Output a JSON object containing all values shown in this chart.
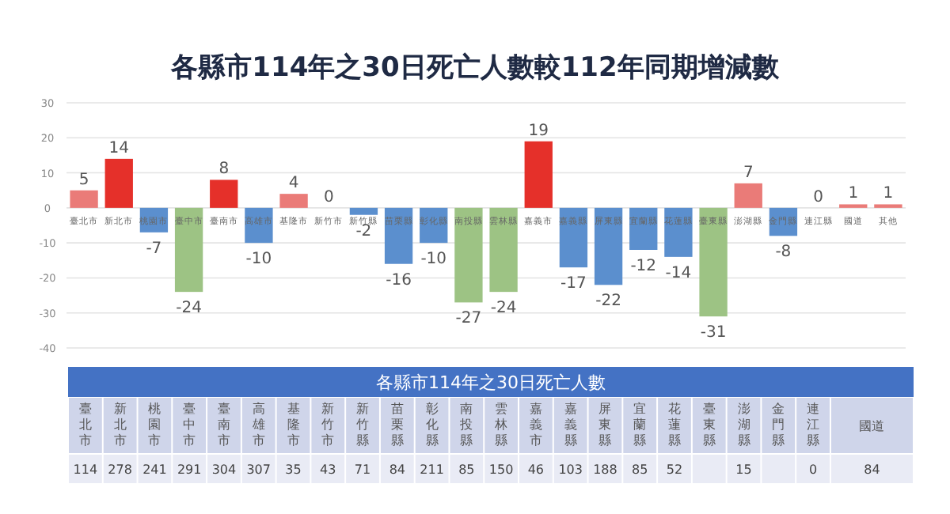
{
  "chart_data": [
    {
      "type": "bar",
      "title": "各縣市114年之30日死亡人數較112年同期增減數",
      "categories": [
        "臺北市",
        "新北市",
        "桃園市",
        "臺中市",
        "臺南市",
        "高雄市",
        "基隆市",
        "新竹市",
        "新竹縣",
        "苗栗縣",
        "彰化縣",
        "南投縣",
        "雲林縣",
        "嘉義市",
        "嘉義縣",
        "屏東縣",
        "宜蘭縣",
        "花蓮縣",
        "臺東縣",
        "澎湖縣",
        "金門縣",
        "連江縣",
        "國道",
        "其他"
      ],
      "values": [
        5,
        14,
        -7,
        -24,
        8,
        -10,
        4,
        0,
        -2,
        -16,
        -10,
        -27,
        -24,
        19,
        -17,
        -22,
        -12,
        -14,
        -31,
        7,
        -8,
        0,
        1,
        1
      ],
      "colors": [
        "#ea7b78",
        "#e5302a",
        "#5b8fce",
        "#9dc384",
        "#e5302a",
        "#5b8fce",
        "#ea7b78",
        "#ea7b78",
        "#5b8fce",
        "#5b8fce",
        "#5b8fce",
        "#9dc384",
        "#9dc384",
        "#e5302a",
        "#5b8fce",
        "#5b8fce",
        "#5b8fce",
        "#5b8fce",
        "#9dc384",
        "#ea7b78",
        "#5b8fce",
        "#ea7b78",
        "#ea7b78",
        "#ea7b78"
      ],
      "ylim": [
        -40,
        30
      ],
      "yticks": [
        -40,
        -30,
        -20,
        -10,
        0,
        10,
        20,
        30
      ],
      "grid": "y",
      "data_labels": true
    },
    {
      "type": "other",
      "title": "各縣市114年之30日死亡人數",
      "categories": [
        "臺北市",
        "新北市",
        "桃園市",
        "臺中市",
        "臺南市",
        "高雄市",
        "基隆市",
        "新竹市",
        "新竹縣",
        "苗栗縣",
        "彰化縣",
        "南投縣",
        "雲林縣",
        "嘉義市",
        "嘉義縣",
        "屏東縣",
        "宜蘭縣",
        "花蓮縣",
        "臺東縣",
        "澎湖縣",
        "金門縣",
        "連江縣",
        "國道"
      ],
      "values": [
        114,
        278,
        241,
        291,
        304,
        307,
        35,
        43,
        71,
        84,
        211,
        85,
        150,
        46,
        103,
        188,
        85,
        52,
        null,
        15,
        null,
        0,
        84
      ],
      "data_labels": true
    }
  ]
}
